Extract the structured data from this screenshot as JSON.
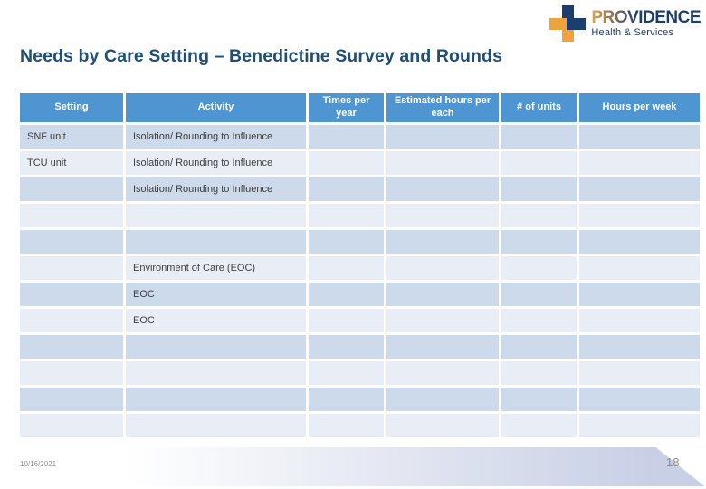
{
  "logo": {
    "name": "PROVIDENCE",
    "tagline": "Health & Services"
  },
  "title": "Needs by Care Setting – Benedictine Survey and Rounds",
  "table": {
    "headers": [
      "Setting",
      "Activity",
      "Times per year",
      "Estimated hours per each",
      "# of units",
      "Hours per week"
    ],
    "column_names": [
      "setting",
      "activity",
      "times-per-year",
      "estimated-hours-per-each",
      "num-units",
      "hours-per-week"
    ],
    "rows": [
      {
        "cells": [
          "SNF unit",
          "Isolation/ Rounding to Influence",
          "",
          "",
          "",
          ""
        ]
      },
      {
        "cells": [
          "TCU unit",
          "Isolation/ Rounding to Influence",
          "",
          "",
          "",
          ""
        ]
      },
      {
        "cells": [
          "",
          "Isolation/ Rounding to Influence",
          "",
          "",
          "",
          ""
        ]
      },
      {
        "cells": [
          "",
          "",
          "",
          "",
          "",
          ""
        ]
      },
      {
        "cells": [
          "",
          "",
          "",
          "",
          "",
          ""
        ]
      },
      {
        "cells": [
          "",
          "Environment of Care (EOC)",
          "",
          "",
          "",
          ""
        ]
      },
      {
        "cells": [
          "",
          "EOC",
          "",
          "",
          "",
          ""
        ]
      },
      {
        "cells": [
          "",
          "EOC",
          "",
          "",
          "",
          ""
        ]
      },
      {
        "cells": [
          "",
          "",
          "",
          "",
          "",
          ""
        ]
      },
      {
        "cells": [
          "",
          "",
          "",
          "",
          "",
          ""
        ]
      },
      {
        "cells": [
          "",
          "",
          "",
          "",
          "",
          ""
        ]
      },
      {
        "cells": [
          "",
          "",
          "",
          "",
          "",
          ""
        ]
      }
    ]
  },
  "footer": {
    "date": "10/16/2021",
    "page_number": "18"
  },
  "colors": {
    "header_bg": "#4E95D2",
    "row_dark": "#CDDAEB",
    "row_light": "#E9EEF6",
    "title_color": "#1F4E79",
    "cross_navy": "#1B3E6F",
    "cross_orange": "#F0A23C"
  }
}
